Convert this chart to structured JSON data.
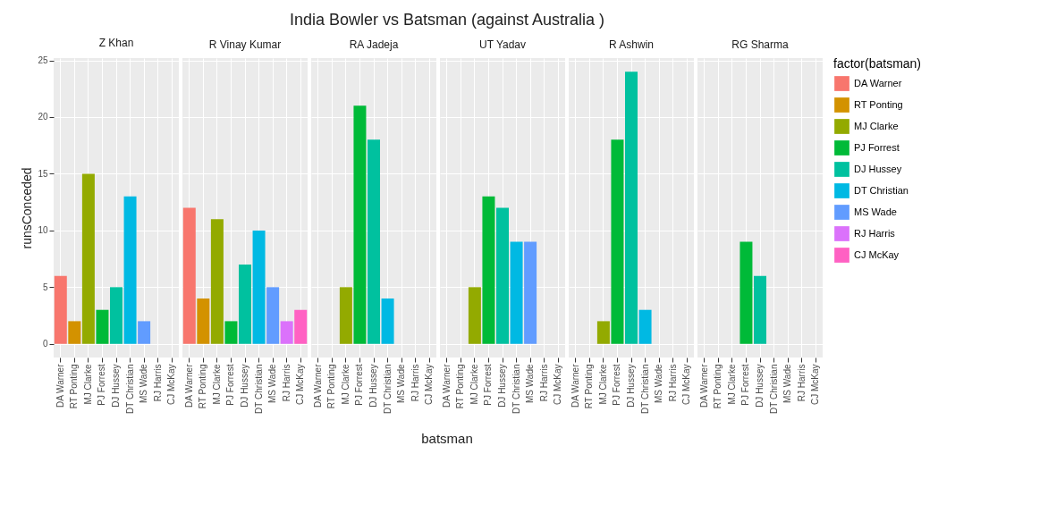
{
  "chart_data": [
    {
      "type": "other",
      "title": "India Bowler vs Batsman (against Australia )"
    },
    {
      "type": "bar",
      "subtitle": "Z Khan",
      "ylabel": "runsConceded",
      "categories": [
        "DA Warner",
        "RT Ponting",
        "MJ Clarke",
        "PJ Forrest",
        "DJ Hussey",
        "DT Christian",
        "MS Wade",
        "RJ Harris",
        "CJ McKay"
      ],
      "values": [
        6,
        2,
        15,
        3,
        5,
        13,
        2,
        null,
        null
      ],
      "colors": [
        "#f8766d",
        "#d39200",
        "#93aa00",
        "#00ba38",
        "#00c19f",
        "#00b9e3",
        "#619cff",
        "#db72fb",
        "#ff61c3"
      ],
      "ylim": [
        -1.2,
        25.2
      ],
      "yticks": [
        0,
        5,
        10,
        15,
        20,
        25
      ],
      "grid": true
    },
    {
      "type": "bar",
      "subtitle": "R Vinay Kumar",
      "categories": [
        "DA Warner",
        "RT Ponting",
        "MJ Clarke",
        "PJ Forrest",
        "DJ Hussey",
        "DT Christian",
        "MS Wade",
        "RJ Harris",
        "CJ McKay"
      ],
      "values": [
        12,
        4,
        11,
        2,
        7,
        10,
        5,
        2,
        3
      ],
      "colors": [
        "#f8766d",
        "#d39200",
        "#93aa00",
        "#00ba38",
        "#00c19f",
        "#00b9e3",
        "#619cff",
        "#db72fb",
        "#ff61c3"
      ],
      "ylim": [
        -1.2,
        25.2
      ],
      "yticks": [
        0,
        5,
        10,
        15,
        20,
        25
      ],
      "grid": true,
      "tick_labels": "x"
    },
    {
      "type": "bar",
      "subtitle": "RA Jadeja",
      "categories": [
        "DA Warner",
        "RT Ponting",
        "MJ Clarke",
        "PJ Forrest",
        "DJ Hussey",
        "DT Christian",
        "MS Wade",
        "RJ Harris",
        "CJ McKay"
      ],
      "values": [
        null,
        null,
        5,
        21,
        18,
        4,
        null,
        null,
        null
      ],
      "colors": [
        "#f8766d",
        "#d39200",
        "#93aa00",
        "#00ba38",
        "#00c19f",
        "#00b9e3",
        "#619cff",
        "#db72fb",
        "#ff61c3"
      ],
      "ylim": [
        -1.2,
        25.2
      ],
      "yticks": [
        0,
        5,
        10,
        15,
        20,
        25
      ],
      "grid": true,
      "tick_labels": "x"
    },
    {
      "type": "bar",
      "subtitle": "UT Yadav",
      "categories": [
        "DA Warner",
        "RT Ponting",
        "MJ Clarke",
        "PJ Forrest",
        "DJ Hussey",
        "DT Christian",
        "MS Wade",
        "RJ Harris",
        "CJ McKay"
      ],
      "values": [
        null,
        null,
        5,
        13,
        12,
        9,
        9,
        null,
        null
      ],
      "colors": [
        "#f8766d",
        "#d39200",
        "#93aa00",
        "#00ba38",
        "#00c19f",
        "#00b9e3",
        "#619cff",
        "#db72fb",
        "#ff61c3"
      ],
      "ylim": [
        -1.2,
        25.2
      ],
      "yticks": [
        0,
        5,
        10,
        15,
        20,
        25
      ],
      "grid": true,
      "tick_labels": "x"
    },
    {
      "type": "bar",
      "subtitle": "R Ashwin",
      "categories": [
        "DA Warner",
        "RT Ponting",
        "MJ Clarke",
        "PJ Forrest",
        "DJ Hussey",
        "DT Christian",
        "MS Wade",
        "RJ Harris",
        "CJ McKay"
      ],
      "values": [
        null,
        null,
        2,
        18,
        24,
        3,
        null,
        null,
        null
      ],
      "colors": [
        "#f8766d",
        "#d39200",
        "#93aa00",
        "#00ba38",
        "#00c19f",
        "#00b9e3",
        "#619cff",
        "#db72fb",
        "#ff61c3"
      ],
      "ylim": [
        -1.2,
        25.2
      ],
      "yticks": [
        0,
        5,
        10,
        15,
        20,
        25
      ],
      "grid": true,
      "tick_labels": "x"
    },
    {
      "type": "bar",
      "subtitle": "RG Sharma",
      "stacked": true,
      "categories": [
        "DA Warner",
        "RT Ponting",
        "MJ Clarke",
        "PJ Forrest",
        "DJ Hussey",
        "DT Christian",
        "MS Wade",
        "RJ Harris",
        "CJ McKay"
      ],
      "series": [
        {
          "name": "DA Warner",
          "color": "#f8766d",
          "values": [
            null,
            null,
            null,
            null,
            null,
            null,
            null,
            null,
            null
          ]
        },
        {
          "name": "RT Ponting",
          "color": "#d39200",
          "values": [
            null,
            null,
            null,
            null,
            null,
            null,
            null,
            null,
            null
          ]
        },
        {
          "name": "MJ Clarke",
          "color": "#93aa00",
          "values": [
            null,
            null,
            null,
            null,
            null,
            null,
            null,
            null,
            null
          ]
        },
        {
          "name": "PJ Forrest",
          "color": "#00ba38",
          "values": [
            null,
            null,
            null,
            9,
            null,
            null,
            null,
            null,
            null
          ]
        },
        {
          "name": "DJ Hussey",
          "color": "#00c19f",
          "values": [
            null,
            null,
            null,
            null,
            6,
            null,
            null,
            null,
            null
          ]
        },
        {
          "name": "DT Christian",
          "color": "#00b9e3",
          "values": [
            null,
            null,
            null,
            null,
            null,
            null,
            null,
            null,
            null
          ]
        },
        {
          "name": "MS Wade",
          "color": "#619cff",
          "values": [
            null,
            null,
            null,
            null,
            null,
            null,
            null,
            null,
            null
          ]
        },
        {
          "name": "RJ Harris",
          "color": "#db72fb",
          "values": [
            null,
            null,
            null,
            null,
            null,
            null,
            null,
            null,
            null
          ]
        },
        {
          "name": "CJ McKay",
          "color": "#ff61c3",
          "values": [
            null,
            null,
            null,
            null,
            null,
            null,
            null,
            null,
            null
          ]
        }
      ],
      "ylim": [
        -1.2,
        25.2
      ],
      "yticks": [
        0,
        5,
        10,
        15,
        20,
        25
      ],
      "grid": true,
      "tick_labels": "x",
      "legend": "right",
      "legend_title": "factor(batsman)"
    },
    {
      "type": "other",
      "annotations": [
        "batsman"
      ]
    }
  ]
}
